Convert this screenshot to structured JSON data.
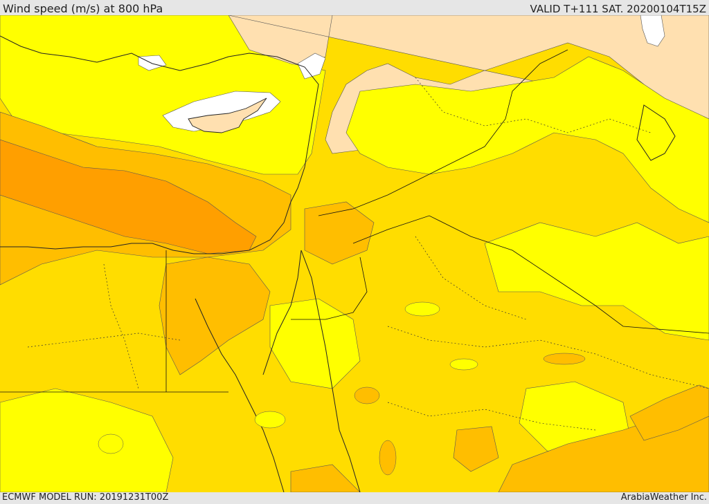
{
  "header": {
    "title": "Wind speed (m/s) at 800 hPa",
    "valid": "VALID T+111 SAT. 20200104T15Z"
  },
  "footer": {
    "model_run": "ECMWF MODEL RUN: 20191231T00Z",
    "brand": "ArabiaWeather Inc."
  },
  "palette": {
    "calm": "#ffffff",
    "light": "#ffe0b0",
    "low": "#ffff00",
    "mid": "#ffdd00",
    "high": "#ffbe00",
    "strong": "#ff9f00"
  }
}
